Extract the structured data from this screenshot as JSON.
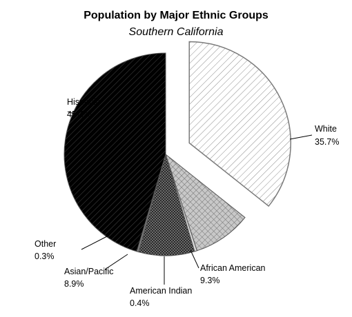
{
  "chart_data": {
    "type": "pie",
    "title": "Population by Major Ethnic Groups",
    "subtitle": "Southern California",
    "start_angle_deg": 0,
    "direction": "clockwise",
    "legend": "none",
    "slices": [
      {
        "name": "White",
        "value": 35.7,
        "value_label": "35.7%",
        "exploded": true,
        "color": "#ffffff",
        "pattern": "light-diagonal"
      },
      {
        "name": "African American",
        "value": 9.3,
        "value_label": "9.3%",
        "exploded": false,
        "color": "#c8c8c8",
        "pattern": "crosshatch"
      },
      {
        "name": "American Indian",
        "value": 0.4,
        "value_label": "0.4%",
        "exploded": false,
        "color": "#d9d9d9",
        "pattern": "none"
      },
      {
        "name": "Asian/Pacific",
        "value": 8.9,
        "value_label": "8.9%",
        "exploded": false,
        "color": "#404040",
        "pattern": "dots"
      },
      {
        "name": "Other",
        "value": 0.3,
        "value_label": "0.3%",
        "exploded": false,
        "color": "#7f7f7f",
        "pattern": "none"
      },
      {
        "name": "Hispanic",
        "value": 45.4,
        "value_label": "45.4%",
        "exploded": false,
        "color": "#000000",
        "pattern": "dark-diagonal"
      }
    ]
  }
}
